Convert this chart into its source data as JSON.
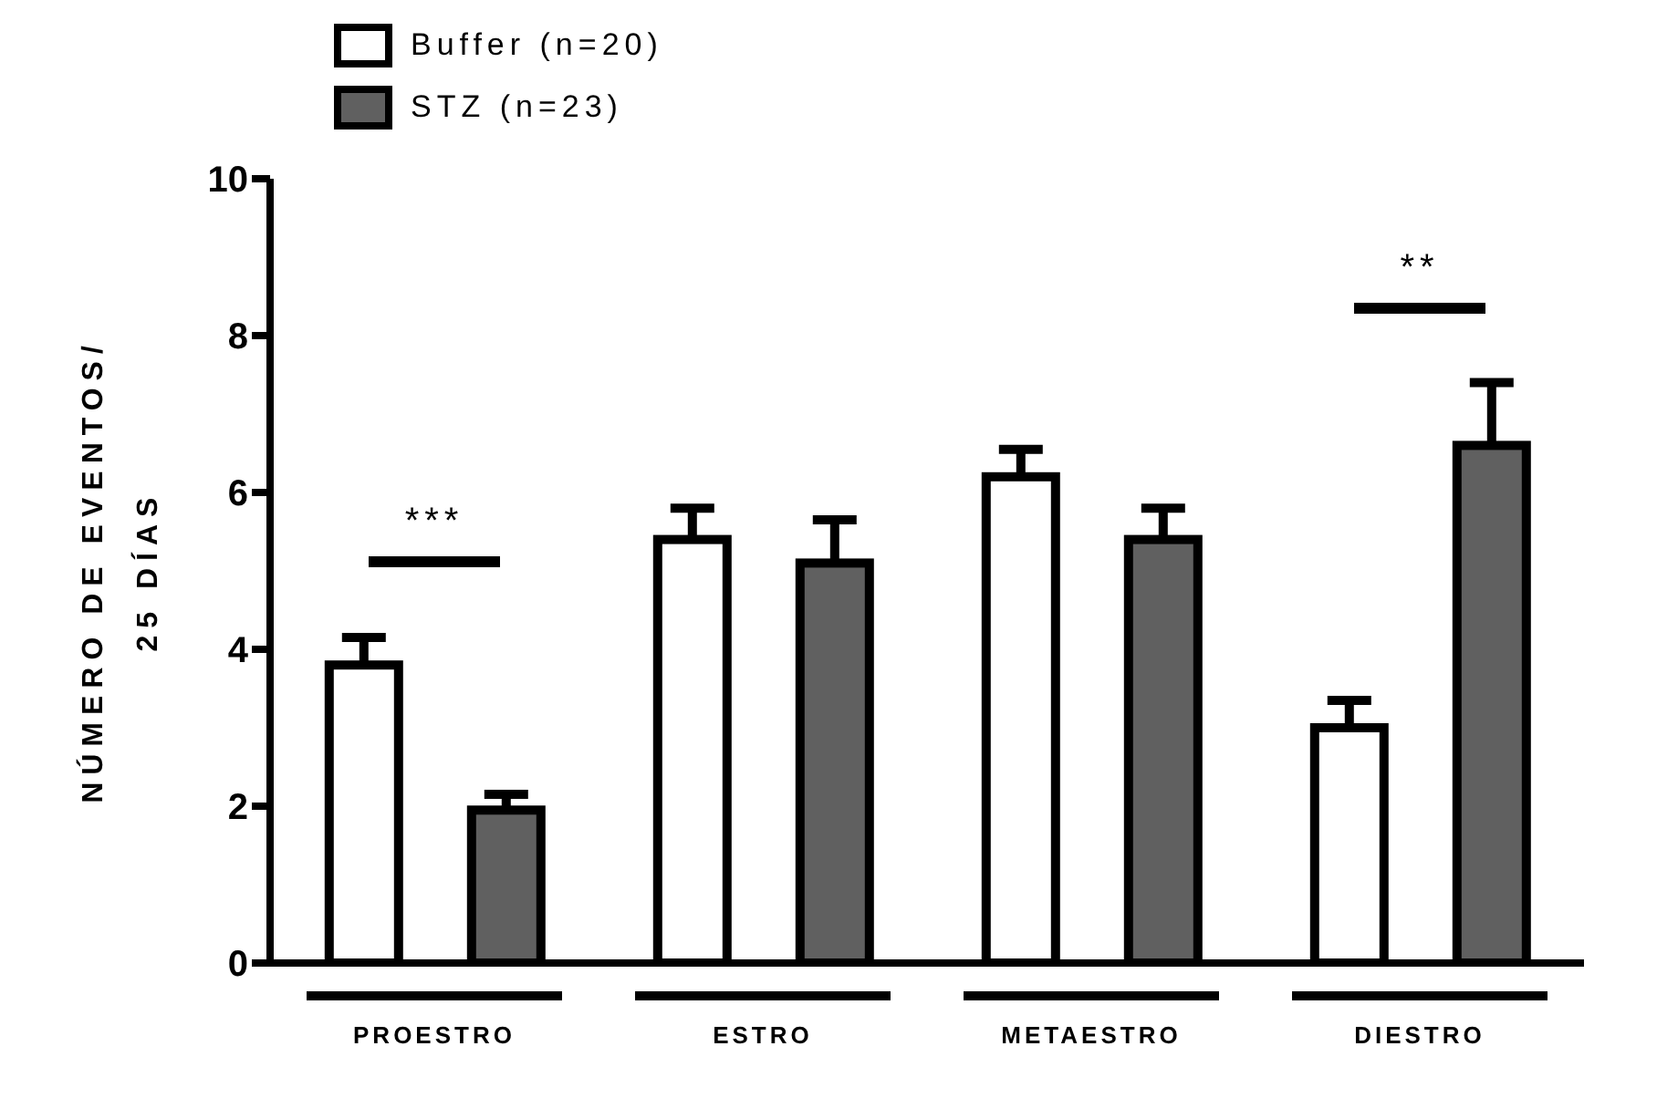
{
  "chart_data": {
    "type": "bar",
    "ylabel": "NÚMERO DE EVENTOS/\n25 DÍAS",
    "categories": [
      "PROESTRO",
      "ESTRO",
      "METAESTRO",
      "DIESTRO"
    ],
    "series": [
      {
        "name": "Buffer (n=20)",
        "color": "#ffffff",
        "values": [
          3.8,
          5.4,
          6.2,
          3.0
        ],
        "errors": [
          [
            3.8,
            4.15
          ],
          [
            5.4,
            5.8
          ],
          [
            6.2,
            6.55
          ],
          [
            3.0,
            3.35
          ]
        ]
      },
      {
        "name": "STZ (n=23)",
        "color": "#606060",
        "values": [
          1.95,
          5.1,
          5.4,
          6.6
        ],
        "errors": [
          [
            1.95,
            2.15
          ],
          [
            5.1,
            5.65
          ],
          [
            5.4,
            5.8
          ],
          [
            6.6,
            7.4
          ]
        ]
      }
    ],
    "ylim": [
      0,
      10
    ],
    "yticks": [
      0,
      2,
      4,
      6,
      8,
      10
    ],
    "grid": false,
    "legend": "top left",
    "annotations": [
      "***",
      "**"
    ]
  }
}
